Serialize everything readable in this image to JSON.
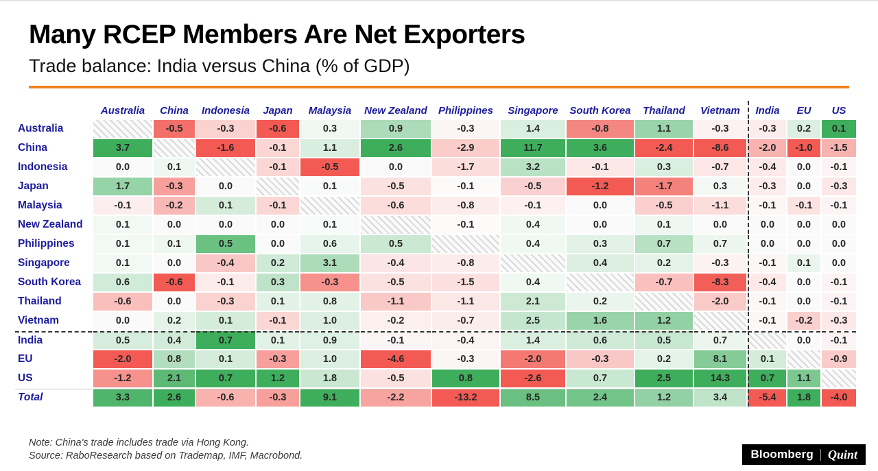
{
  "header": {
    "title": "Many RCEP Members Are Net Exporters",
    "subtitle": "Trade balance: India versus China (% of GDP)"
  },
  "chart_data": {
    "type": "heatmap",
    "title": "Trade balance: India versus China (% of GDP)",
    "unit": "% of GDP",
    "columns": [
      "Australia",
      "China",
      "Indonesia",
      "Japan",
      "Malaysia",
      "New Zealand",
      "Philippines",
      "Singapore",
      "South Korea",
      "Thailand",
      "Vietnam",
      "India",
      "EU",
      "US"
    ],
    "rows": [
      {
        "label": "Australia",
        "values": [
          null,
          -0.5,
          -0.3,
          -0.6,
          0.3,
          0.9,
          -0.3,
          1.4,
          -0.8,
          1.1,
          -0.3,
          -0.3,
          0.2,
          0.1
        ]
      },
      {
        "label": "China",
        "values": [
          3.7,
          null,
          -1.6,
          -0.1,
          1.1,
          2.6,
          -2.9,
          11.7,
          3.6,
          -2.4,
          -8.6,
          -2.0,
          -1.0,
          -1.5
        ]
      },
      {
        "label": "Indonesia",
        "values": [
          0.0,
          0.1,
          null,
          -0.1,
          -0.5,
          0.0,
          -1.7,
          3.2,
          -0.1,
          0.3,
          -0.7,
          -0.4,
          0.0,
          -0.1
        ]
      },
      {
        "label": "Japan",
        "values": [
          1.7,
          -0.3,
          0.0,
          null,
          0.1,
          -0.5,
          -0.1,
          -0.5,
          -1.2,
          -1.7,
          0.3,
          -0.3,
          0.0,
          -0.3
        ]
      },
      {
        "label": "Malaysia",
        "values": [
          -0.1,
          -0.2,
          0.1,
          -0.1,
          null,
          -0.6,
          -0.8,
          -0.1,
          0.0,
          -0.5,
          -1.1,
          -0.1,
          -0.1,
          -0.1
        ]
      },
      {
        "label": "New Zealand",
        "values": [
          0.1,
          0.0,
          0.0,
          0.0,
          0.1,
          null,
          -0.1,
          0.4,
          0.0,
          0.1,
          0.0,
          0.0,
          0.0,
          0.0
        ]
      },
      {
        "label": "Philippines",
        "values": [
          0.1,
          0.1,
          0.5,
          0.0,
          0.6,
          0.5,
          null,
          0.4,
          0.3,
          0.7,
          0.7,
          0.0,
          0.0,
          0.0
        ]
      },
      {
        "label": "Singapore",
        "values": [
          0.1,
          0.0,
          -0.4,
          0.2,
          3.1,
          -0.4,
          -0.8,
          null,
          0.4,
          0.2,
          -0.3,
          -0.1,
          0.1,
          0.0
        ]
      },
      {
        "label": "South Korea",
        "values": [
          0.6,
          -0.6,
          -0.1,
          0.3,
          -0.3,
          -0.5,
          -1.5,
          0.4,
          null,
          -0.7,
          -8.3,
          -0.4,
          0.0,
          -0.1
        ]
      },
      {
        "label": "Thailand",
        "values": [
          -0.6,
          0.0,
          -0.3,
          0.1,
          0.8,
          -1.1,
          -1.1,
          2.1,
          0.2,
          null,
          -2.0,
          -0.1,
          0.0,
          -0.1
        ]
      },
      {
        "label": "Vietnam",
        "values": [
          0.0,
          0.2,
          0.1,
          -0.1,
          1.0,
          -0.2,
          -0.7,
          2.5,
          1.6,
          1.2,
          null,
          -0.1,
          -0.2,
          -0.3
        ]
      },
      {
        "label": "India",
        "values": [
          0.5,
          0.4,
          0.7,
          0.1,
          0.9,
          -0.1,
          -0.4,
          1.4,
          0.6,
          0.5,
          0.7,
          null,
          0.0,
          -0.1
        ]
      },
      {
        "label": "EU",
        "values": [
          -2.0,
          0.8,
          0.1,
          -0.3,
          1.0,
          -4.6,
          -0.3,
          -2.0,
          -0.3,
          0.2,
          8.1,
          0.1,
          null,
          -0.9
        ]
      },
      {
        "label": "US",
        "values": [
          -1.2,
          2.1,
          0.7,
          1.2,
          1.8,
          -0.5,
          0.8,
          -2.6,
          0.7,
          2.5,
          14.3,
          0.7,
          1.1,
          null
        ]
      },
      {
        "label": "Total",
        "values": [
          3.3,
          2.6,
          -0.6,
          -0.3,
          9.1,
          -2.2,
          -13.2,
          8.5,
          2.4,
          1.2,
          3.4,
          -5.4,
          1.8,
          -4.0
        ]
      }
    ],
    "divider_after_index": 10,
    "self_cells": "hatched",
    "color_scale": {
      "normalization": "per-column",
      "negative": "#f25a53",
      "zero": "#fdfdfd",
      "positive": "#3eae5c"
    },
    "legend_position": "none"
  },
  "footer": {
    "note": "Note: China's trade includes trade via Hong Kong.",
    "source": "Source: RaboResearch based on Trademap, IMF, Macrobond.",
    "brand_left": "Bloomberg",
    "brand_right": "Quint"
  },
  "colors": {
    "accent_rule": "#f0821f",
    "header_text": "#1c1c9e"
  }
}
